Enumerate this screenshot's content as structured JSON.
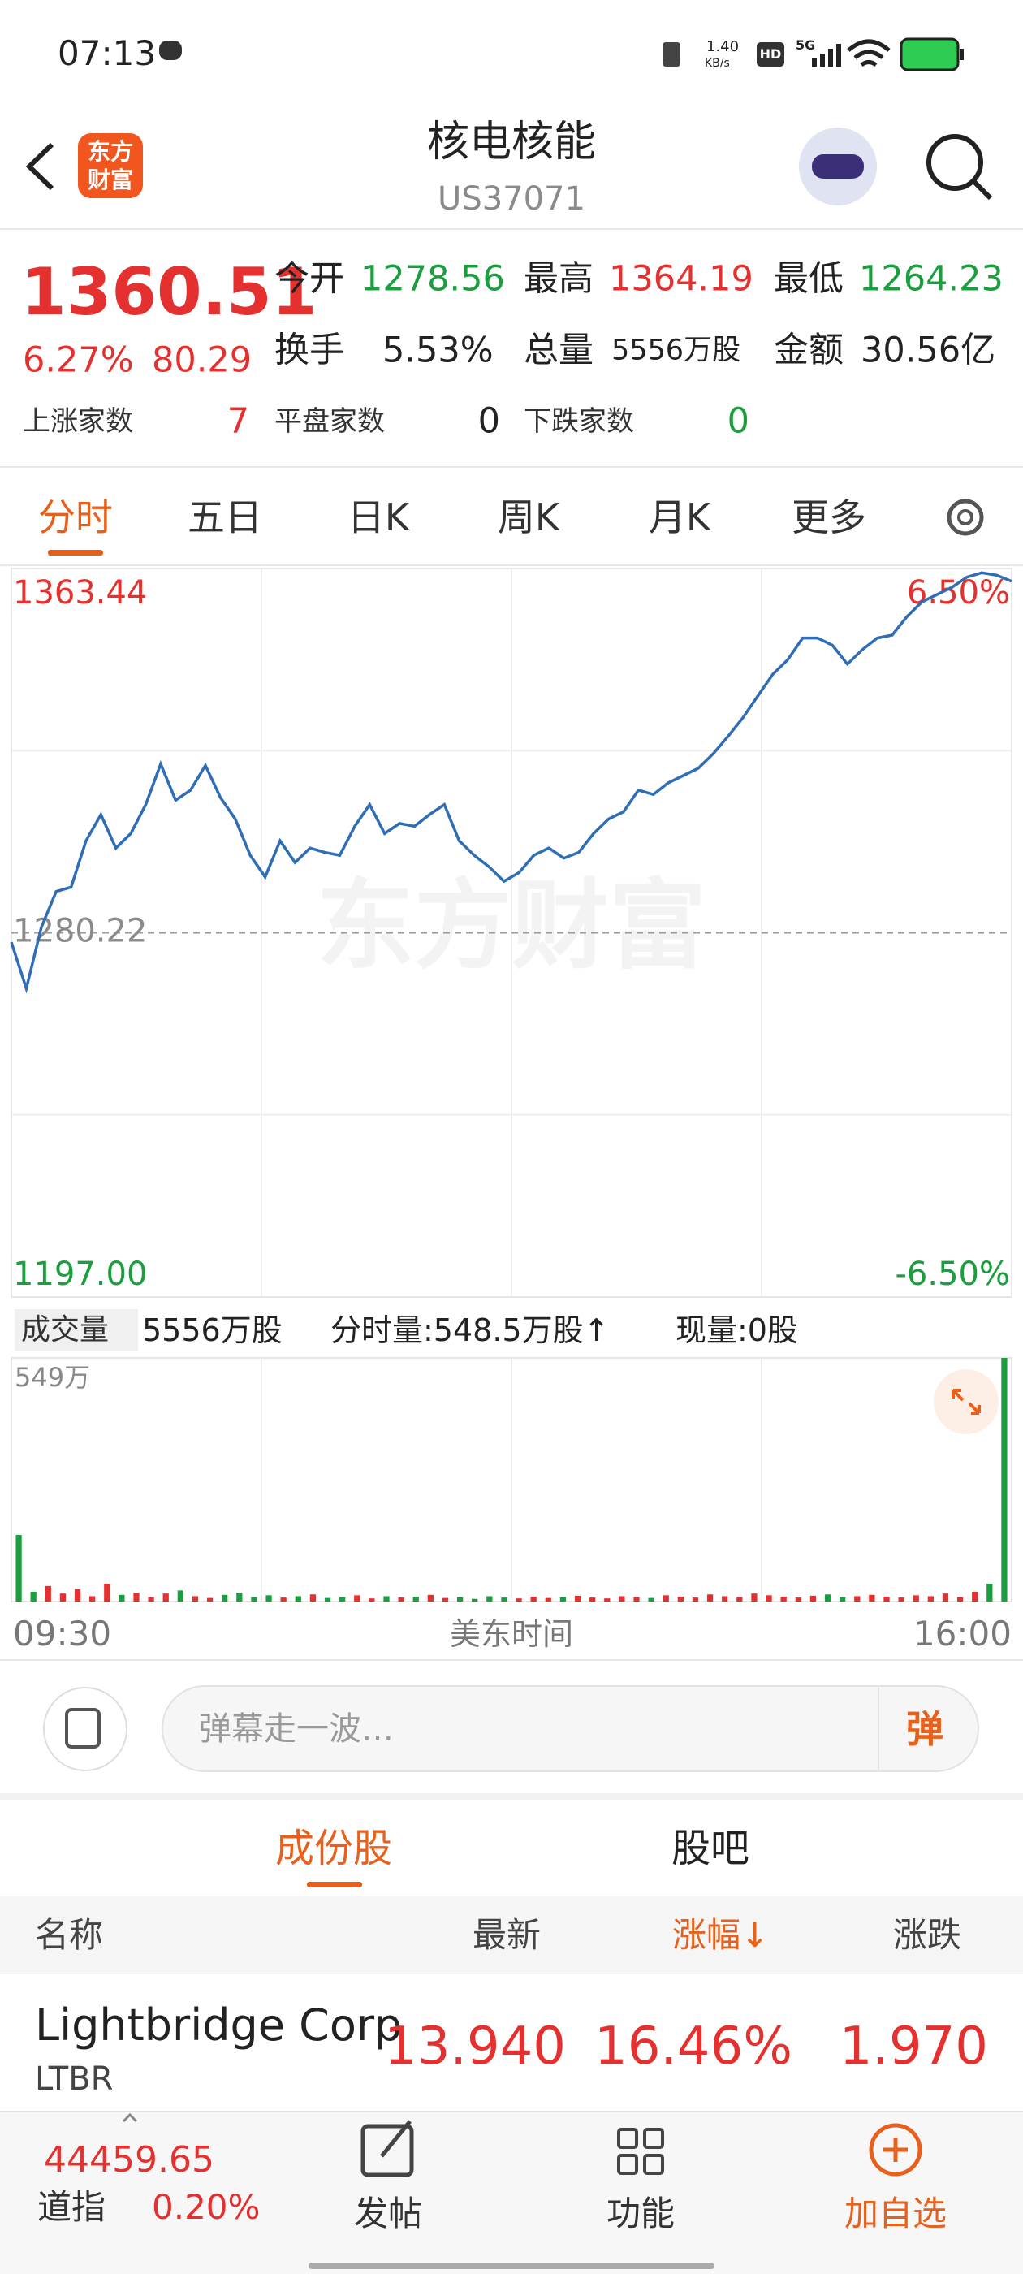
{
  "status_bar": {
    "time": "07:13",
    "net_speed": "1.40",
    "net_unit": "KB/s",
    "hd": "HD",
    "signal": "5G"
  },
  "header": {
    "logo_top": "东方",
    "logo_bottom": "财富",
    "title": "核电核能",
    "code": "US37071"
  },
  "quote": {
    "price": "1360.51",
    "change_pct": "6.27%",
    "change": "80.29",
    "stats": [
      {
        "label": "今开",
        "value": "1278.56"
      },
      {
        "label": "最高",
        "value": "1364.19"
      },
      {
        "label": "最低",
        "value": "1264.23"
      },
      {
        "label": "换手",
        "value": "5.53%"
      },
      {
        "label": "总量",
        "value": "5556万股"
      },
      {
        "label": "金额",
        "value": "30.56亿"
      }
    ],
    "breadth": [
      {
        "label": "上涨家数",
        "value": "7"
      },
      {
        "label": "平盘家数",
        "value": "0"
      },
      {
        "label": "下跌家数",
        "value": "0"
      }
    ]
  },
  "tabs": [
    "分时",
    "五日",
    "日K",
    "周K",
    "月K",
    "更多"
  ],
  "chart_data": [
    {
      "type": "line",
      "color": "#2f6db5",
      "up_color": "#e4312f",
      "down_color": "#1b9e3e",
      "flat_color": "#8a8a8a",
      "watermark": "东方财富",
      "ylim": [
        1197,
        1363.44
      ],
      "yticks": [
        1363.44,
        1280.22,
        {
          "value": 1197,
          "label": "1197.00"
        }
      ],
      "y2lim": [
        -6.5,
        6.5
      ],
      "y2ticks": [
        {
          "value": 6.5,
          "label": "6.50%"
        },
        {
          "value": -6.5,
          "label": "-6.50%"
        }
      ],
      "values": [
        1278.07,
        1267.48,
        1281.38,
        1289.65,
        1290.64,
        1301.23,
        1307.19,
        1299.58,
        1302.89,
        1309.5,
        1318.77,
        1310.5,
        1312.81,
        1318.44,
        1311.16,
        1306.19,
        1297.92,
        1292.96,
        1301.23,
        1296.27,
        1299.58,
        1298.58,
        1297.92,
        1304.54,
        1309.5,
        1302.89,
        1305.2,
        1304.54,
        1307.19,
        1309.5,
        1301.23,
        1297.92,
        1295.27,
        1291.97,
        1293.95,
        1297.92,
        1299.58,
        1297.26,
        1298.58,
        1302.89,
        1306.19,
        1307.85,
        1312.81,
        1311.82,
        1314.47,
        1316.12,
        1317.78,
        1321.08,
        1325.06,
        1329.36,
        1334.32,
        1339.28,
        1342.59,
        1347.56,
        1347.56,
        1345.9,
        1341.6,
        1344.91,
        1347.56,
        1348.22,
        1352.52,
        1355.83,
        1357.48,
        1359.14,
        1361.45,
        1362.45,
        1361.9,
        1360.51
      ]
    },
    {
      "type": "bar",
      "up_color": "#e4312f",
      "down_color": "#1b9e3e",
      "indicator": "成交量",
      "total": "5556万股",
      "last": "分时量:548.5万股↑",
      "current": "现量:0股",
      "ylim": [
        0,
        549
      ],
      "yticks": [
        {
          "value": 549,
          "label": "549万"
        }
      ],
      "x_labels": [
        "09:30",
        "16:00"
      ],
      "x_axis_label": "美东时间",
      "values": [
        150,
        22,
        35,
        18,
        28,
        12,
        40,
        15,
        20,
        10,
        18,
        25,
        12,
        8,
        15,
        20,
        10,
        14,
        9,
        12,
        16,
        8,
        10,
        14,
        7,
        12,
        9,
        11,
        15,
        8,
        10,
        6,
        12,
        9,
        7,
        11,
        8,
        10,
        13,
        9,
        7,
        12,
        10,
        8,
        14,
        11,
        9,
        16,
        12,
        10,
        18,
        14,
        11,
        9,
        13,
        16,
        10,
        12,
        15,
        11,
        9,
        14,
        12,
        18,
        10,
        22,
        40,
        549
      ]
    }
  ],
  "comment": {
    "placeholder": "弹幕走一波…",
    "send": "弹"
  },
  "section_tabs": [
    "成份股",
    "股吧"
  ],
  "table": {
    "headers": [
      "名称",
      "最新",
      "涨幅↓",
      "涨跌"
    ],
    "rows": [
      {
        "name": "Lightbridge Corp",
        "code": "LTBR",
        "last": "13.940",
        "pct": "16.46%",
        "change": "1.970"
      }
    ]
  },
  "bottom_bar": {
    "index_value": "44459.65",
    "index_name": "道指",
    "index_pct": "0.20%",
    "nav": [
      "发帖",
      "功能",
      "加自选"
    ]
  }
}
